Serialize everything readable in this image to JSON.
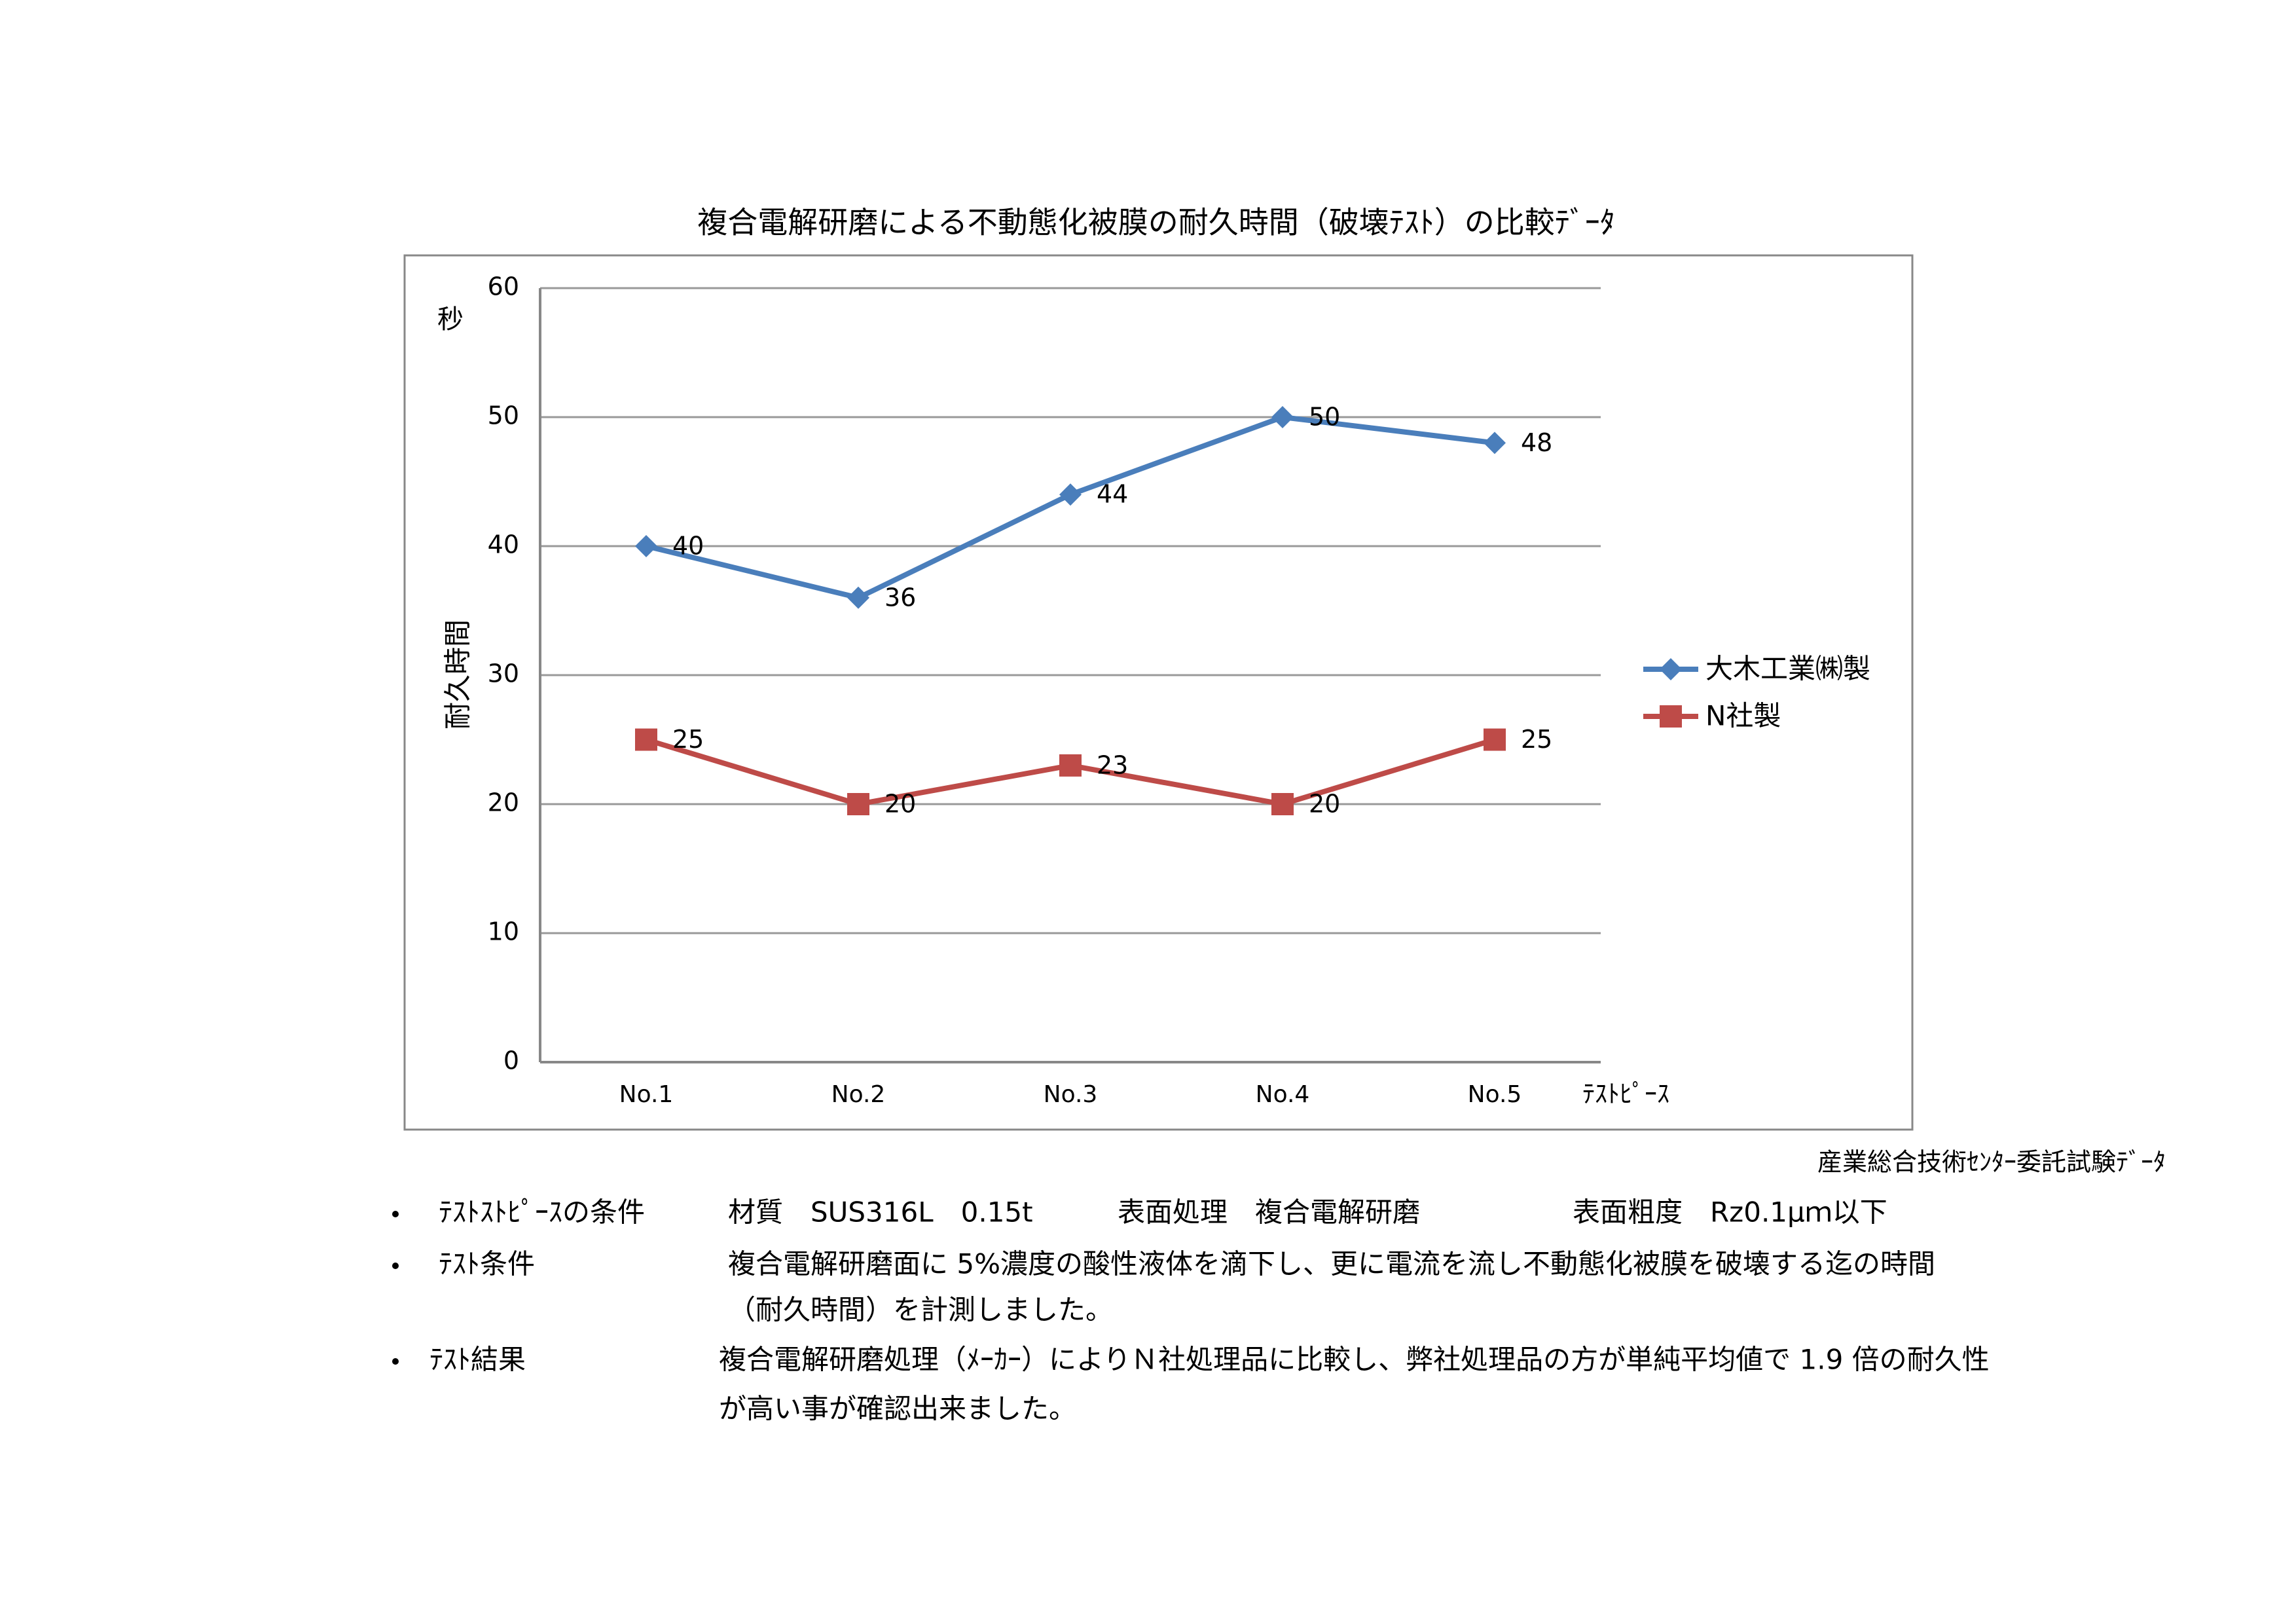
{
  "chart_data": {
    "type": "line",
    "title": "複合電解研磨による不動態化被膜の耐久時間（破壊ﾃｽﾄ）の比較ﾃﾞｰﾀ",
    "y_label": "耐久時間",
    "y_unit": "秒",
    "x_label": "ﾃｽﾄﾋﾟｰｽ",
    "categories": [
      "No.1",
      "No.2",
      "No.3",
      "No.4",
      "No.5"
    ],
    "series": [
      {
        "name": "大木工業㈱製",
        "color": "#4a7ebb",
        "marker": "diamond",
        "values": [
          40,
          36,
          44,
          50,
          48
        ]
      },
      {
        "name": "N社製",
        "color": "#be4b48",
        "marker": "square",
        "values": [
          25,
          20,
          23,
          20,
          25
        ]
      }
    ],
    "ylim": [
      0,
      60
    ],
    "yticks": [
      0,
      10,
      20,
      30,
      40,
      50,
      60
    ],
    "grid": true,
    "legend": "right",
    "data_labels": true,
    "source": "産業総合技術ｾﾝﾀｰ委託試験ﾃﾞｰﾀ"
  },
  "notes": [
    {
      "label": "ﾃｽﾄｽﾄﾋﾟｰｽの条件",
      "columns": [
        "材質　SUS316L　0.15t",
        "表面処理　複合電解研磨",
        "表面粗度　Rz0.1μｍ以下"
      ]
    },
    {
      "label": "ﾃｽﾄ条件",
      "lines": [
        "複合電解研磨面に 5%濃度の酸性液体を滴下し、更に電流を流し不動態化被膜を破壊する迄の時間",
        "（耐久時間）を計測しました。"
      ]
    },
    {
      "label": "ﾃｽﾄ結果",
      "lines": [
        "複合電解研磨処理（ﾒｰｶｰ）によりＮ社処理品に比較し、弊社処理品の方が単純平均値で 1.9 倍の耐久性",
        "が高い事が確認出来ました。"
      ]
    }
  ]
}
